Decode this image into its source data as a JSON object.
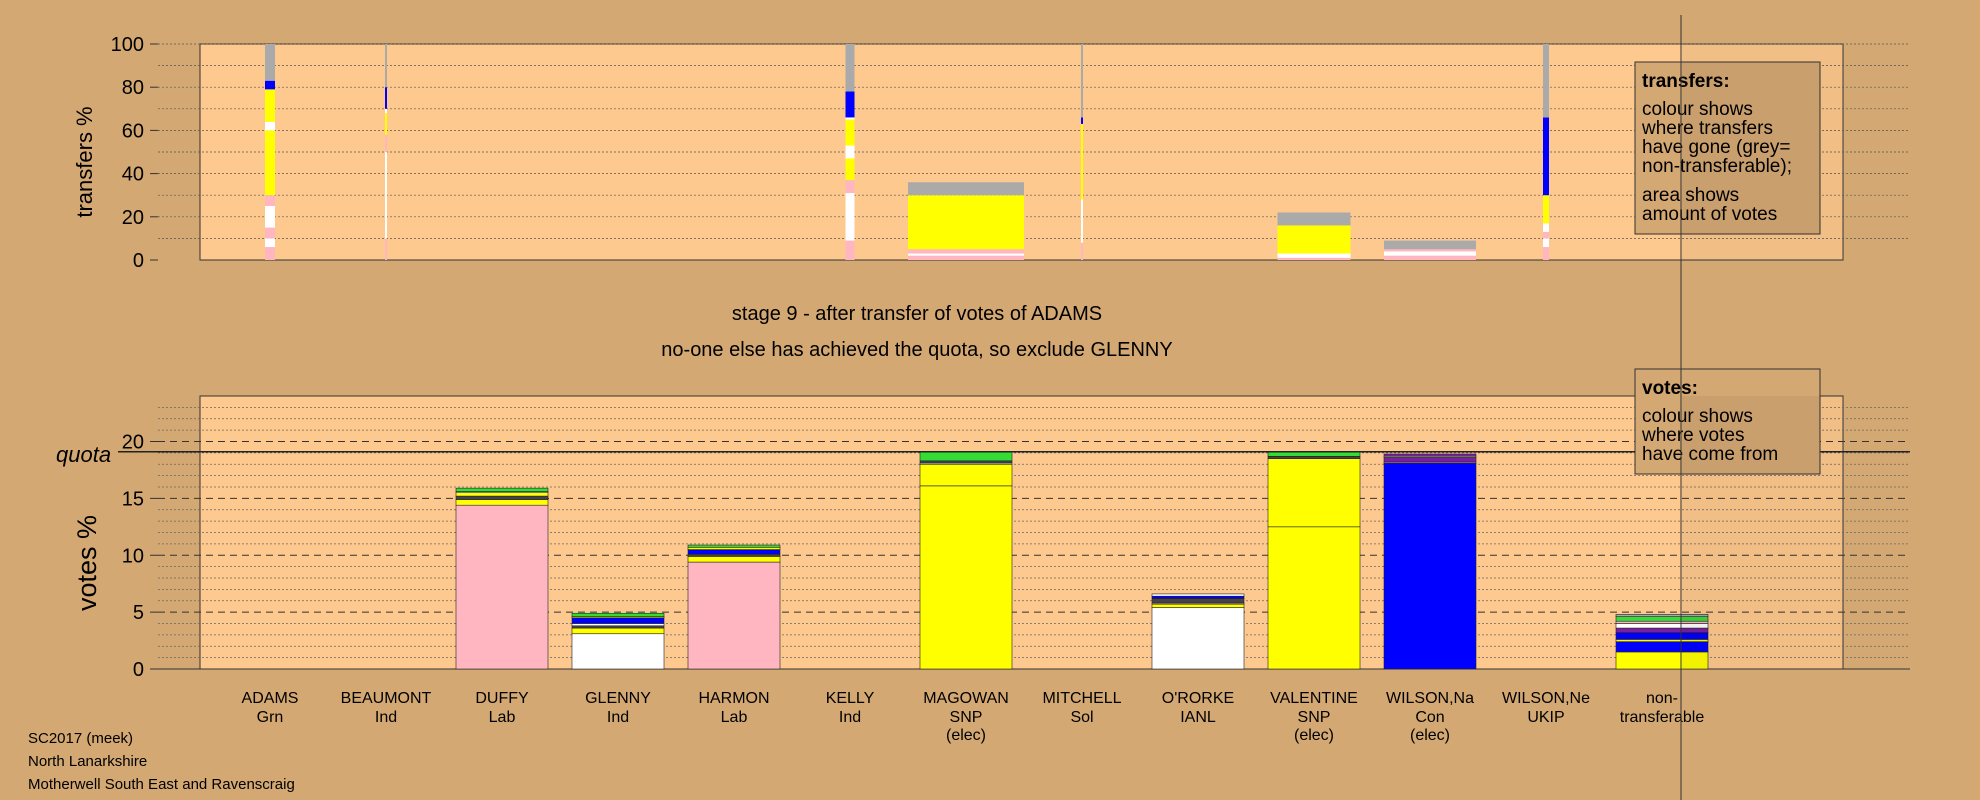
{
  "colors": {
    "background": "#d4a873",
    "plot": "#fec98e",
    "Lab": "#ffb6c1",
    "Ind": "#ffffff",
    "SNP": "#ffff00",
    "Con": "#0000ff",
    "Grn": "#33dd33",
    "UKIP": "#7b1fa2",
    "Sol": "#dc3333",
    "IANL": "#444444",
    "nontransferable": "#aaaaaa"
  },
  "chart_data": [
    {
      "type": "bar",
      "name": "transfers",
      "ylabel": "transfers %",
      "ylim": [
        0,
        100
      ],
      "yticks": [
        0,
        20,
        40,
        60,
        80,
        100
      ],
      "grid": true,
      "box": {
        "title": "transfers:",
        "lines": [
          "colour shows",
          "where transfers",
          "have gone (grey=",
          "non-transferable);",
          "area shows",
          "amount of votes"
        ]
      },
      "note": "each bar's width is the size of the vote pile received from ADAMS, height is percent",
      "strips": [
        {
          "candidate": "ADAMS",
          "segments": [
            [
              "Lab",
              6
            ],
            [
              "Ind",
              4
            ],
            [
              "Lab",
              5
            ],
            [
              "Ind",
              10
            ],
            [
              "Lab",
              5
            ],
            [
              "SNP",
              30
            ],
            [
              "Ind",
              4
            ],
            [
              "SNP",
              15
            ],
            [
              "Con",
              4
            ],
            [
              "nontransferable",
              17
            ]
          ]
        },
        {
          "candidate": "BEAUMONT",
          "segments": [
            [
              "Lab",
              10
            ],
            [
              "Ind",
              40
            ],
            [
              "Lab",
              8
            ],
            [
              "SNP",
              10
            ],
            [
              "Ind",
              2
            ],
            [
              "Con",
              10
            ],
            [
              "nontransferable",
              20
            ]
          ]
        },
        {
          "candidate": "KELLY",
          "segments": [
            [
              "Lab",
              9
            ],
            [
              "Ind",
              22
            ],
            [
              "Lab",
              6
            ],
            [
              "SNP",
              10
            ],
            [
              "Ind",
              6
            ],
            [
              "SNP",
              12
            ],
            [
              "Ind",
              1
            ],
            [
              "Con",
              12
            ],
            [
              "nontransferable",
              22
            ]
          ]
        },
        {
          "candidate": "MAGOWAN",
          "segments": [
            [
              "Lab",
              2
            ],
            [
              "Ind",
              1
            ],
            [
              "Lab",
              2
            ],
            [
              "SNP",
              25
            ],
            [
              "nontransferable",
              6
            ]
          ]
        },
        {
          "candidate": "MITCHELL",
          "segments": [
            [
              "Lab",
              8
            ],
            [
              "Ind",
              20
            ],
            [
              "SNP",
              35
            ],
            [
              "Con",
              3
            ],
            [
              "nontransferable",
              34
            ]
          ]
        },
        {
          "candidate": "VALENTINE",
          "segments": [
            [
              "Lab",
              1
            ],
            [
              "Ind",
              2
            ],
            [
              "SNP",
              13
            ],
            [
              "nontransferable",
              6
            ]
          ]
        },
        {
          "candidate": "WILSON,Na",
          "segments": [
            [
              "Lab",
              2
            ],
            [
              "Ind",
              2
            ],
            [
              "Lab",
              1
            ],
            [
              "nontransferable",
              4
            ]
          ]
        },
        {
          "candidate": "WILSON,Ne",
          "segments": [
            [
              "Lab",
              6
            ],
            [
              "Ind",
              4
            ],
            [
              "Lab",
              3
            ],
            [
              "Ind",
              4
            ],
            [
              "SNP",
              13
            ],
            [
              "Con",
              36
            ],
            [
              "nontransferable",
              34
            ]
          ]
        }
      ]
    },
    {
      "type": "bar",
      "name": "votes",
      "ylabel": "votes %",
      "ylim": [
        0,
        24
      ],
      "yticks": [
        0,
        5,
        10,
        15,
        20
      ],
      "quota": 19.1,
      "quota_label": "quota",
      "grid": true,
      "box": {
        "title": "votes:",
        "lines": [
          "colour shows",
          "where votes",
          "have come from"
        ]
      },
      "categories": [
        {
          "name": "ADAMS",
          "party": "Grn",
          "elec": false,
          "total": 0
        },
        {
          "name": "BEAUMONT",
          "party": "Ind",
          "elec": false,
          "total": 0
        },
        {
          "name": "DUFFY",
          "party": "Lab",
          "elec": false,
          "total": 15.9
        },
        {
          "name": "GLENNY",
          "party": "Ind",
          "elec": false,
          "total": 4.9
        },
        {
          "name": "HARMON",
          "party": "Lab",
          "elec": false,
          "total": 10.9
        },
        {
          "name": "KELLY",
          "party": "Ind",
          "elec": false,
          "total": 0
        },
        {
          "name": "MAGOWAN",
          "party": "SNP",
          "elec": true,
          "total": 19.1
        },
        {
          "name": "MITCHELL",
          "party": "Sol",
          "elec": false,
          "total": 0
        },
        {
          "name": "O'RORKE",
          "party": "IANL",
          "elec": false,
          "total": 6.6
        },
        {
          "name": "VALENTINE",
          "party": "SNP",
          "elec": true,
          "total": 19.1
        },
        {
          "name": "WILSON,Na",
          "party": "Con",
          "elec": true,
          "total": 18.9
        },
        {
          "name": "WILSON,Ne",
          "party": "UKIP",
          "elec": false,
          "total": 0
        },
        {
          "name": "non-",
          "party": "transferable",
          "elec": false,
          "total": 4.8,
          "nontransferable": true
        }
      ],
      "elec_label": "(elec)",
      "stacks": [
        [],
        [],
        [
          [
            "Lab",
            14.4
          ],
          [
            "SNP",
            0.5
          ],
          [
            "IANL",
            0.3
          ],
          [
            "SNP",
            0.3
          ],
          [
            "Ind",
            0.1
          ],
          [
            "Grn",
            0.3
          ]
        ],
        [
          [
            "Ind",
            3.1
          ],
          [
            "SNP",
            0.5
          ],
          [
            "IANL",
            0.2
          ],
          [
            "Ind",
            0.2
          ],
          [
            "Con",
            0.5
          ],
          [
            "SNP",
            0.1
          ],
          [
            "Grn",
            0.3
          ]
        ],
        [
          [
            "Lab",
            9.4
          ],
          [
            "SNP",
            0.5
          ],
          [
            "IANL",
            0.2
          ],
          [
            "Con",
            0.4
          ],
          [
            "SNP",
            0.2
          ],
          [
            "Grn",
            0.2
          ]
        ],
        [],
        [
          [
            "SNP",
            16.1
          ],
          [
            "SNP",
            1.9
          ],
          [
            "Ind",
            0.1
          ],
          [
            "IANL",
            0.2
          ],
          [
            "Grn",
            0.8
          ]
        ],
        [],
        [
          [
            "Ind",
            5.4
          ],
          [
            "SNP",
            0.3
          ],
          [
            "Lab",
            0.1
          ],
          [
            "IANL",
            0.4
          ],
          [
            "Con",
            0.2
          ],
          [
            "Ind",
            0.2
          ]
        ],
        [
          [
            "SNP",
            12.5
          ],
          [
            "SNP",
            6.0
          ],
          [
            "IANL",
            0.2
          ],
          [
            "Grn",
            0.4
          ]
        ],
        [
          [
            "Con",
            18.1
          ],
          [
            "Lab",
            0.1
          ],
          [
            "UKIP",
            0.4
          ],
          [
            "Ind",
            0.1
          ],
          [
            "UKIP",
            0.2
          ]
        ],
        [],
        [
          [
            "SNP",
            1.5
          ],
          [
            "Con",
            0.9
          ],
          [
            "SNP",
            0.2
          ],
          [
            "Con",
            0.6
          ],
          [
            "UKIP",
            0.4
          ],
          [
            "Ind",
            0.4
          ],
          [
            "Lab",
            0.2
          ],
          [
            "Grn",
            0.4
          ],
          [
            "nontransferable",
            0.2
          ]
        ]
      ]
    }
  ],
  "stage": {
    "line1": "stage 9 - after transfer of votes of ADAMS",
    "line2": "no-one else has achieved the quota, so exclude GLENNY"
  },
  "footer": {
    "line1": "SC2017 (meek)",
    "line2": "North Lanarkshire",
    "line3": "Motherwell South East and Ravenscraig"
  }
}
